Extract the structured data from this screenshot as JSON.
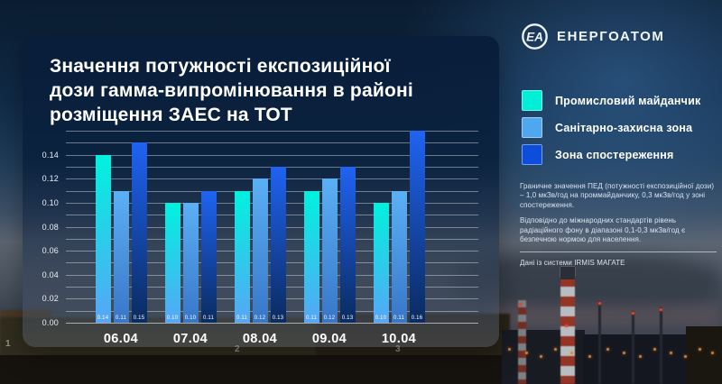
{
  "brand": {
    "wordmark": "ЕНЕРГОАТОМ",
    "logo_monogram": "ЕА"
  },
  "title_lines": [
    "Значення потужності експозиційної",
    "дози гамма-випромінювання в районі",
    "розміщення ЗАЕС на ТОТ"
  ],
  "legend": [
    {
      "label": "Промисловий майданчик",
      "color": "#00EFD6"
    },
    {
      "label": "Санітарно-захисна зона",
      "color": "#4FA8EF"
    },
    {
      "label": "Зона спостереження",
      "color": "#0C4EDB"
    }
  ],
  "notes": {
    "p1": "Граничне значення ПЕД (потужності експозиційної дози) – 1,0 мкЗв/год на проммайданчику, 0,3 мкЗв/год у зоні спостереження.",
    "p2": "Відповідно до міжнародних стандартів рівень радіаційного фону в діапазоні 0,1-0,3 мкЗв/год є безпечною нормою для населення.",
    "source": "Дані із системи IRMIS МАГАТЕ"
  },
  "background": {
    "unit_numbers": [
      "1",
      "2",
      "3"
    ]
  },
  "chart_data": {
    "type": "bar",
    "title": "Значення потужності експозиційної дози гамма-випромінювання в районі розміщення ЗАЕС на ТОТ",
    "categories": [
      "06.04",
      "07.04",
      "08.04",
      "09.04",
      "10.04"
    ],
    "series": [
      {
        "name": "Промисловий майданчик",
        "values": [
          0.14,
          0.1,
          0.11,
          0.11,
          0.1
        ],
        "color_top": "#00F2DE",
        "color_bottom": "#57A6F6"
      },
      {
        "name": "Санітарно-захисна зона",
        "values": [
          0.11,
          0.1,
          0.12,
          0.12,
          0.11
        ],
        "color_top": "#5BB0F5",
        "color_bottom": "#3876C8"
      },
      {
        "name": "Зона спостереження",
        "values": [
          0.15,
          0.11,
          0.13,
          0.13,
          0.16
        ],
        "color_top": "#2063F2",
        "color_bottom": "#0A2B60"
      }
    ],
    "ylim": [
      0,
      0.16
    ],
    "y_tick_step": 0.02,
    "y_minor_step": 0.01,
    "y_tick_labels": [
      "0.00",
      "0.02",
      "0.04",
      "0.06",
      "0.08",
      "0.10",
      "0.12",
      "0.14"
    ],
    "grid": true,
    "legend_position": "right",
    "value_labels": true,
    "units": "мкЗв/год"
  }
}
